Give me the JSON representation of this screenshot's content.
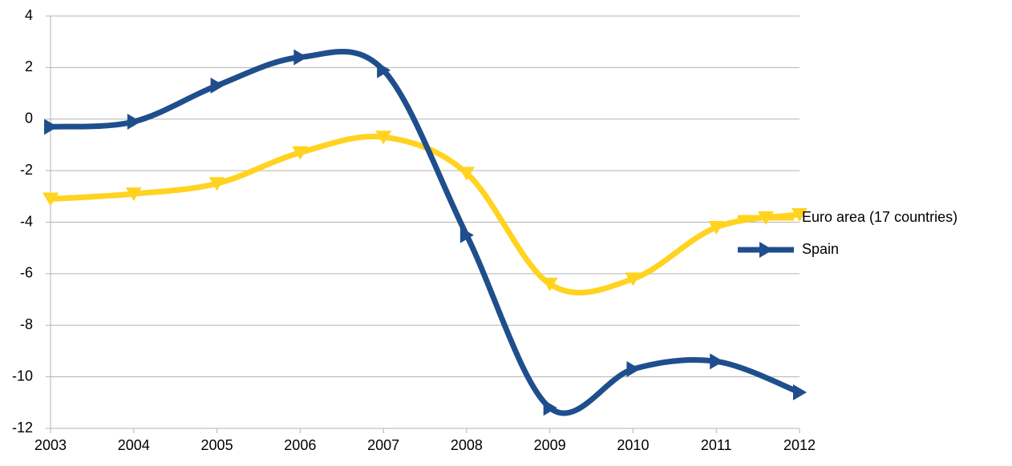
{
  "chart_data": {
    "type": "line",
    "categories": [
      "2003",
      "2004",
      "2005",
      "2006",
      "2007",
      "2008",
      "2009",
      "2010",
      "2011",
      "2012"
    ],
    "series": [
      {
        "name": "Euro area (17 countries)",
        "color": "#ffd320",
        "marker": "triangle-down",
        "values": [
          -3.1,
          -2.9,
          -2.5,
          -1.3,
          -0.7,
          -2.1,
          -6.4,
          -6.2,
          -4.2,
          -3.7
        ]
      },
      {
        "name": "Spain",
        "color": "#1f4e8c",
        "marker": "triangle-right",
        "values": [
          -0.3,
          -0.1,
          1.3,
          2.4,
          1.9,
          -4.5,
          -11.2,
          -9.7,
          -9.4,
          -10.6
        ]
      }
    ],
    "ylim": [
      -12,
      4
    ],
    "yticks": [
      -12,
      -10,
      -8,
      -6,
      -4,
      -2,
      0,
      2,
      4
    ],
    "grid": true,
    "smooth": true,
    "legend": "right"
  }
}
